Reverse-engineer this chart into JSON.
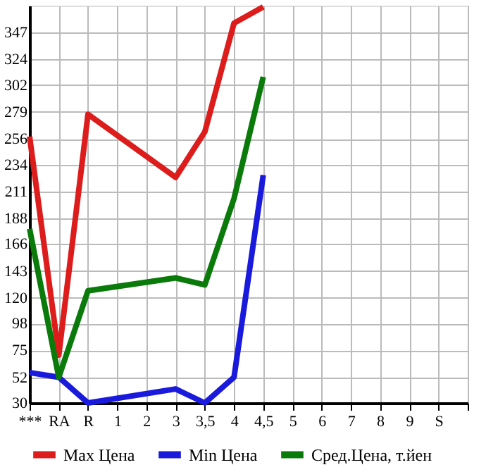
{
  "chart_data": {
    "type": "line",
    "categories": [
      "***",
      "RA",
      "R",
      "1",
      "2",
      "3",
      "3,5",
      "4",
      "4,5",
      "5",
      "6",
      "7",
      "8",
      "9",
      "S",
      null
    ],
    "series": [
      {
        "name": "Max Цена",
        "color": "#dd1c1c",
        "values": [
          258,
          71,
          277,
          null,
          null,
          223,
          262,
          355,
          369,
          null,
          null,
          null,
          null,
          null,
          null,
          null
        ]
      },
      {
        "name": "Min Цена",
        "color": "#1a1adc",
        "values": [
          56,
          52,
          30,
          null,
          null,
          42,
          30,
          52,
          225,
          null,
          null,
          null,
          null,
          null,
          null,
          null
        ]
      },
      {
        "name": "Сред.Цена, т.йен",
        "color": "#0a7a0a",
        "values": [
          179,
          52,
          126,
          null,
          null,
          137,
          131,
          205,
          309,
          null,
          null,
          null,
          null,
          null,
          null,
          null
        ]
      }
    ],
    "ylim": [
      30,
      370
    ],
    "yticks": [
      30,
      52,
      75,
      98,
      120,
      143,
      166,
      188,
      211,
      234,
      256,
      279,
      302,
      324,
      347
    ],
    "grid": true,
    "legend": "bottom",
    "marker": "none",
    "line_style": "solid"
  }
}
